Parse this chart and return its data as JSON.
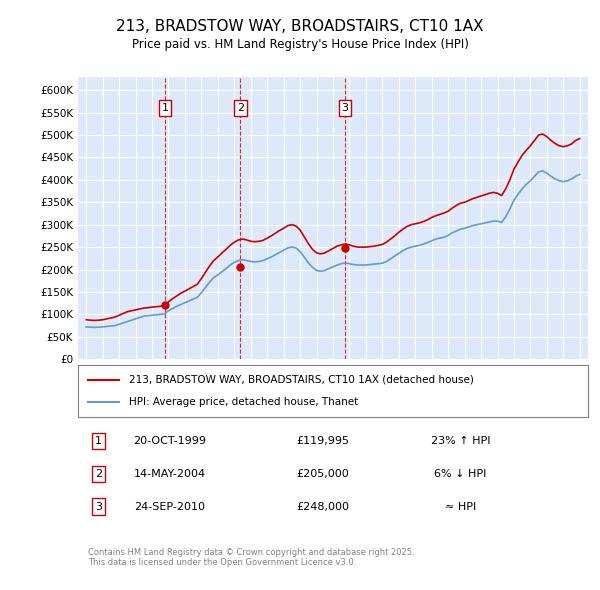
{
  "title": "213, BRADSTOW WAY, BROADSTAIRS, CT10 1AX",
  "subtitle": "Price paid vs. HM Land Registry's House Price Index (HPI)",
  "legend_line1": "213, BRADSTOW WAY, BROADSTAIRS, CT10 1AX (detached house)",
  "legend_line2": "HPI: Average price, detached house, Thanet",
  "transactions": [
    {
      "num": 1,
      "date": "20-OCT-1999",
      "price": 119995,
      "pct": "23%",
      "dir": "↑",
      "x_year": 1999.8
    },
    {
      "num": 2,
      "date": "14-MAY-2004",
      "price": 205000,
      "pct": "6%",
      "dir": "↓",
      "x_year": 2004.37
    },
    {
      "num": 3,
      "date": "24-SEP-2010",
      "price": 248000,
      "pct": "≈",
      "dir": "",
      "x_year": 2010.73
    }
  ],
  "ylabel_ticks": [
    0,
    50000,
    100000,
    150000,
    200000,
    250000,
    300000,
    350000,
    400000,
    450000,
    500000,
    550000,
    600000
  ],
  "ylabel_labels": [
    "£0",
    "£50K",
    "£100K",
    "£150K",
    "£200K",
    "£250K",
    "£300K",
    "£350K",
    "£400K",
    "£450K",
    "£500K",
    "£550K",
    "£600K"
  ],
  "ylim": [
    0,
    630000
  ],
  "xlim": [
    1994.5,
    2025.5
  ],
  "background_color": "#dde8f8",
  "plot_bg": "#dde8f8",
  "grid_color": "#ffffff",
  "red_color": "#cc0000",
  "blue_color": "#6699cc",
  "footer": "Contains HM Land Registry data © Crown copyright and database right 2025.\nThis data is licensed under the Open Government Licence v3.0.",
  "hpi_data_x": [
    1995.0,
    1995.25,
    1995.5,
    1995.75,
    1996.0,
    1996.25,
    1996.5,
    1996.75,
    1997.0,
    1997.25,
    1997.5,
    1997.75,
    1998.0,
    1998.25,
    1998.5,
    1998.75,
    1999.0,
    1999.25,
    1999.5,
    1999.75,
    2000.0,
    2000.25,
    2000.5,
    2000.75,
    2001.0,
    2001.25,
    2001.5,
    2001.75,
    2002.0,
    2002.25,
    2002.5,
    2002.75,
    2003.0,
    2003.25,
    2003.5,
    2003.75,
    2004.0,
    2004.25,
    2004.5,
    2004.75,
    2005.0,
    2005.25,
    2005.5,
    2005.75,
    2006.0,
    2006.25,
    2006.5,
    2006.75,
    2007.0,
    2007.25,
    2007.5,
    2007.75,
    2008.0,
    2008.25,
    2008.5,
    2008.75,
    2009.0,
    2009.25,
    2009.5,
    2009.75,
    2010.0,
    2010.25,
    2010.5,
    2010.75,
    2011.0,
    2011.25,
    2011.5,
    2011.75,
    2012.0,
    2012.25,
    2012.5,
    2012.75,
    2013.0,
    2013.25,
    2013.5,
    2013.75,
    2014.0,
    2014.25,
    2014.5,
    2014.75,
    2015.0,
    2015.25,
    2015.5,
    2015.75,
    2016.0,
    2016.25,
    2016.5,
    2016.75,
    2017.0,
    2017.25,
    2017.5,
    2017.75,
    2018.0,
    2018.25,
    2018.5,
    2018.75,
    2019.0,
    2019.25,
    2019.5,
    2019.75,
    2020.0,
    2020.25,
    2020.5,
    2020.75,
    2021.0,
    2021.25,
    2021.5,
    2021.75,
    2022.0,
    2022.25,
    2022.5,
    2022.75,
    2023.0,
    2023.25,
    2023.5,
    2023.75,
    2024.0,
    2024.25,
    2024.5,
    2024.75,
    2025.0
  ],
  "hpi_data_y": [
    72000,
    71500,
    71000,
    71500,
    72000,
    73000,
    74000,
    75000,
    78000,
    81000,
    84000,
    87000,
    90000,
    93000,
    96000,
    97000,
    98000,
    99000,
    100000,
    101000,
    108000,
    113000,
    118000,
    122000,
    126000,
    130000,
    134000,
    138000,
    148000,
    160000,
    172000,
    182000,
    188000,
    195000,
    202000,
    210000,
    216000,
    220000,
    222000,
    220000,
    218000,
    217000,
    218000,
    220000,
    224000,
    228000,
    233000,
    238000,
    243000,
    248000,
    250000,
    248000,
    240000,
    228000,
    215000,
    205000,
    198000,
    196000,
    198000,
    202000,
    206000,
    210000,
    213000,
    215000,
    213000,
    211000,
    210000,
    210000,
    210000,
    211000,
    212000,
    213000,
    214000,
    218000,
    224000,
    230000,
    236000,
    242000,
    247000,
    250000,
    252000,
    254000,
    257000,
    260000,
    264000,
    268000,
    270000,
    272000,
    276000,
    282000,
    286000,
    290000,
    292000,
    295000,
    298000,
    300000,
    302000,
    304000,
    306000,
    308000,
    308000,
    305000,
    318000,
    335000,
    355000,
    368000,
    380000,
    390000,
    398000,
    408000,
    418000,
    420000,
    415000,
    408000,
    402000,
    398000,
    396000,
    398000,
    402000,
    408000,
    412000
  ],
  "property_data_x": [
    1995.0,
    1995.25,
    1995.5,
    1995.75,
    1996.0,
    1996.25,
    1996.5,
    1996.75,
    1997.0,
    1997.25,
    1997.5,
    1997.75,
    1998.0,
    1998.25,
    1998.5,
    1998.75,
    1999.0,
    1999.25,
    1999.5,
    1999.75,
    2000.0,
    2000.25,
    2000.5,
    2000.75,
    2001.0,
    2001.25,
    2001.5,
    2001.75,
    2002.0,
    2002.25,
    2002.5,
    2002.75,
    2003.0,
    2003.25,
    2003.5,
    2003.75,
    2004.0,
    2004.25,
    2004.5,
    2004.75,
    2005.0,
    2005.25,
    2005.5,
    2005.75,
    2006.0,
    2006.25,
    2006.5,
    2006.75,
    2007.0,
    2007.25,
    2007.5,
    2007.75,
    2008.0,
    2008.25,
    2008.5,
    2008.75,
    2009.0,
    2009.25,
    2009.5,
    2009.75,
    2010.0,
    2010.25,
    2010.5,
    2010.75,
    2011.0,
    2011.25,
    2011.5,
    2011.75,
    2012.0,
    2012.25,
    2012.5,
    2012.75,
    2013.0,
    2013.25,
    2013.5,
    2013.75,
    2014.0,
    2014.25,
    2014.5,
    2014.75,
    2015.0,
    2015.25,
    2015.5,
    2015.75,
    2016.0,
    2016.25,
    2016.5,
    2016.75,
    2017.0,
    2017.25,
    2017.5,
    2017.75,
    2018.0,
    2018.25,
    2018.5,
    2018.75,
    2019.0,
    2019.25,
    2019.5,
    2019.75,
    2020.0,
    2020.25,
    2020.5,
    2020.75,
    2021.0,
    2021.25,
    2021.5,
    2021.75,
    2022.0,
    2022.25,
    2022.5,
    2022.75,
    2023.0,
    2023.25,
    2023.5,
    2023.75,
    2024.0,
    2024.25,
    2024.5,
    2024.75,
    2025.0
  ],
  "property_data_y": [
    88000,
    87000,
    86500,
    87000,
    88000,
    90000,
    92000,
    94000,
    98000,
    102000,
    106000,
    108000,
    110000,
    112000,
    114000,
    115000,
    116000,
    117000,
    118000,
    119000,
    128000,
    135000,
    141000,
    147000,
    152000,
    157000,
    162000,
    167000,
    180000,
    194000,
    208000,
    220000,
    228000,
    237000,
    245000,
    254000,
    261000,
    266000,
    268000,
    266000,
    263000,
    262000,
    263000,
    265000,
    270000,
    275000,
    281000,
    287000,
    292000,
    298000,
    300000,
    297000,
    288000,
    273000,
    258000,
    245000,
    237000,
    235000,
    237000,
    242000,
    247000,
    252000,
    255000,
    257000,
    255000,
    252000,
    250000,
    250000,
    250000,
    251000,
    252000,
    254000,
    256000,
    261000,
    268000,
    275000,
    283000,
    290000,
    296000,
    300000,
    302000,
    304000,
    307000,
    311000,
    316000,
    320000,
    323000,
    326000,
    330000,
    337000,
    343000,
    348000,
    350000,
    354000,
    358000,
    361000,
    364000,
    367000,
    370000,
    372000,
    370000,
    365000,
    380000,
    400000,
    424000,
    440000,
    455000,
    466000,
    476000,
    488000,
    500000,
    502000,
    496000,
    488000,
    481000,
    476000,
    474000,
    476000,
    480000,
    488000,
    492000
  ]
}
